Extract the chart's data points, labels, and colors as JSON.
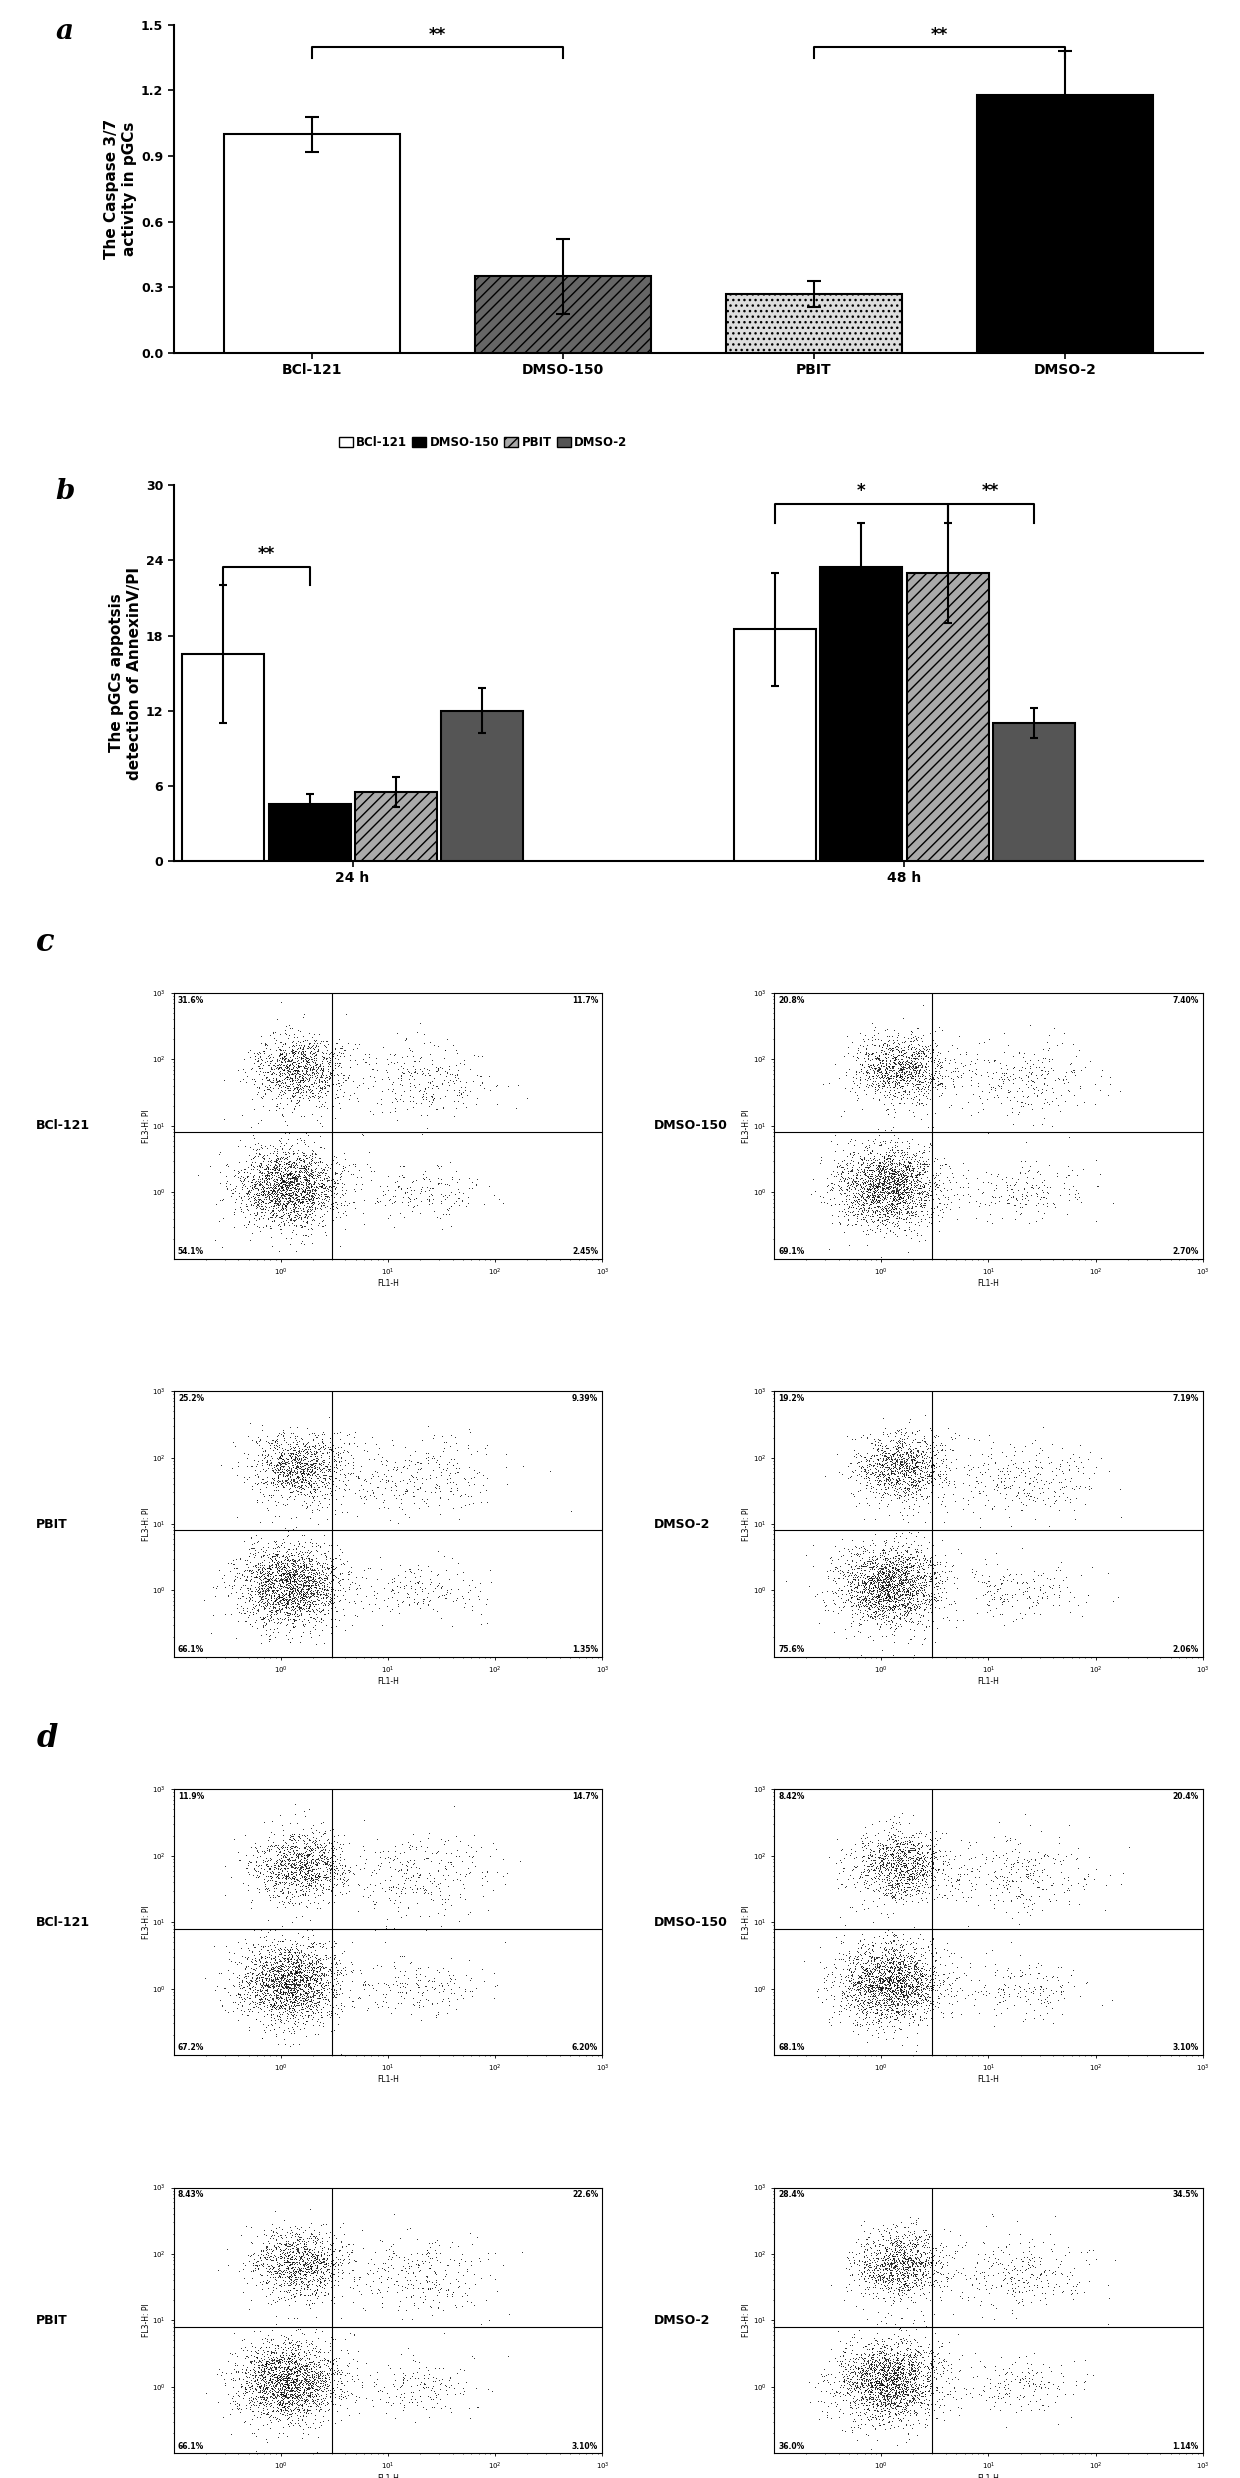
{
  "panel_a": {
    "categories": [
      "BCl-121",
      "DMSO-150",
      "PBIT",
      "DMSO-2"
    ],
    "values": [
      1.0,
      0.35,
      0.27,
      1.18
    ],
    "errors": [
      0.08,
      0.17,
      0.06,
      0.2
    ],
    "bar_colors": [
      "white",
      "#666666",
      "#dddddd",
      "black"
    ],
    "bar_hatches": [
      "",
      "///",
      "...",
      ""
    ],
    "ylabel": "The Caspase 3/7\nactivity in pGCs",
    "ylim": [
      0.0,
      1.5
    ],
    "yticks": [
      0.0,
      0.3,
      0.6,
      0.9,
      1.2,
      1.5
    ]
  },
  "panel_b": {
    "values_24h": [
      16.5,
      4.5,
      5.5,
      12.0
    ],
    "errors_24h": [
      5.5,
      0.8,
      1.2,
      1.8
    ],
    "values_48h": [
      18.5,
      23.5,
      23.0,
      11.0
    ],
    "errors_48h": [
      4.5,
      3.5,
      4.0,
      1.2
    ],
    "bar_colors": [
      "white",
      "black",
      "#aaaaaa",
      "#555555"
    ],
    "bar_hatches": [
      "",
      "",
      "///",
      ""
    ],
    "ylabel": "The pGCs appotsis\ndetection of AnnexinV/PI",
    "ylim": [
      0,
      30
    ],
    "yticks": [
      0,
      6,
      12,
      18,
      24,
      30
    ],
    "legend": [
      "BCl-121",
      "DMSO-150",
      "PBIT",
      "DMSO-2"
    ]
  },
  "scatter_panels": {
    "c_row1_left": {
      "label": "BCl-121",
      "tl": "31.6%",
      "tr": "11.7%",
      "bl": "54.1%",
      "br": "2.45%"
    },
    "c_row1_right": {
      "label": "DMSO-150",
      "tl": "20.8%",
      "tr": "7.40%",
      "bl": "69.1%",
      "br": "2.70%"
    },
    "c_row2_left": {
      "label": "PBIT",
      "tl": "25.2%",
      "tr": "9.39%",
      "bl": "66.1%",
      "br": "1.35%"
    },
    "c_row2_right": {
      "label": "DMSO-2",
      "tl": "19.2%",
      "tr": "7.19%",
      "bl": "75.6%",
      "br": "2.06%"
    },
    "d_row1_left": {
      "label": "BCl-121",
      "tl": "11.9%",
      "tr": "14.7%",
      "bl": "67.2%",
      "br": "6.20%"
    },
    "d_row1_right": {
      "label": "DMSO-150",
      "tl": "8.42%",
      "tr": "20.4%",
      "bl": "68.1%",
      "br": "3.10%"
    },
    "d_row2_left": {
      "label": "PBIT",
      "tl": "8.43%",
      "tr": "22.6%",
      "bl": "66.1%",
      "br": "3.10%"
    },
    "d_row2_right": {
      "label": "DMSO-2",
      "tl": "28.4%",
      "tr": "34.5%",
      "bl": "36.0%",
      "br": "1.14%"
    }
  },
  "panel_label_fontsize": 20,
  "axis_label_fontsize": 10,
  "tick_fontsize": 9,
  "bar_width": 0.7
}
